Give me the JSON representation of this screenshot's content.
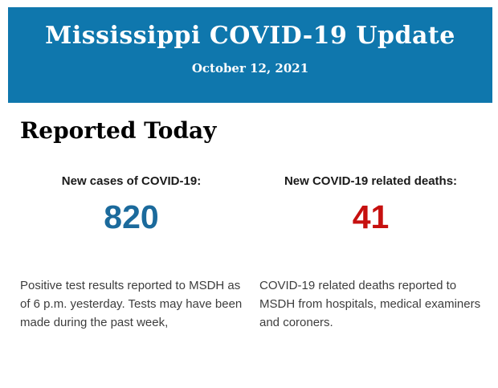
{
  "header": {
    "title": "Mississippi COVID-19 Update",
    "date": "October 12, 2021",
    "background_color": "#0f77ad",
    "text_color": "#ffffff"
  },
  "section": {
    "title": "Reported Today"
  },
  "stats": [
    {
      "label": "New cases of COVID-19:",
      "value": "820",
      "value_color": "#1b6a9c",
      "description": "Positive test results reported to MSDH as of 6 p.m. yesterday. Tests may have been made during the past week,"
    },
    {
      "label": "New COVID-19 related deaths:",
      "value": "41",
      "value_color": "#c6100f",
      "description": "COVID-19 related deaths reported to MSDH from hospitals, medical examiners and coroners."
    }
  ]
}
